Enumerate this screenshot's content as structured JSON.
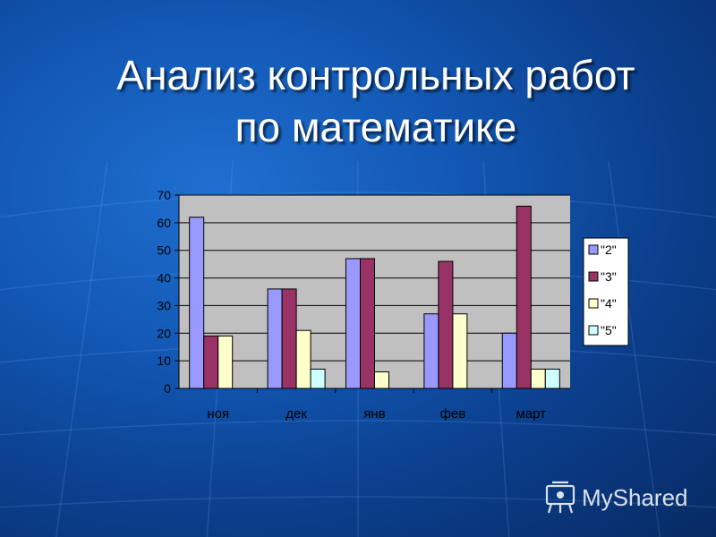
{
  "title": {
    "line1": "Анализ контрольных работ",
    "line2": "по математике"
  },
  "chart_data": {
    "type": "bar",
    "categories": [
      "ноя",
      "дек",
      "янв",
      "фев",
      "март"
    ],
    "series": [
      {
        "name": "\"2\"",
        "color": "#9999ff",
        "values": [
          62,
          36,
          47,
          27,
          20
        ]
      },
      {
        "name": "\"3\"",
        "color": "#993366",
        "values": [
          19,
          36,
          47,
          46,
          66
        ]
      },
      {
        "name": "\"4\"",
        "color": "#ffffcc",
        "values": [
          19,
          21,
          6,
          27,
          7
        ]
      },
      {
        "name": "\"5\"",
        "color": "#ccffff",
        "values": [
          0,
          7,
          0,
          0,
          7
        ]
      }
    ],
    "ylim": [
      0,
      70
    ],
    "yticks": [
      0,
      10,
      20,
      30,
      40,
      50,
      60,
      70
    ],
    "grid": true,
    "legend": "right",
    "plot_background": "#c0c0c0"
  },
  "watermark": {
    "text": "MyShared",
    "icon": "projector-screen-icon"
  }
}
